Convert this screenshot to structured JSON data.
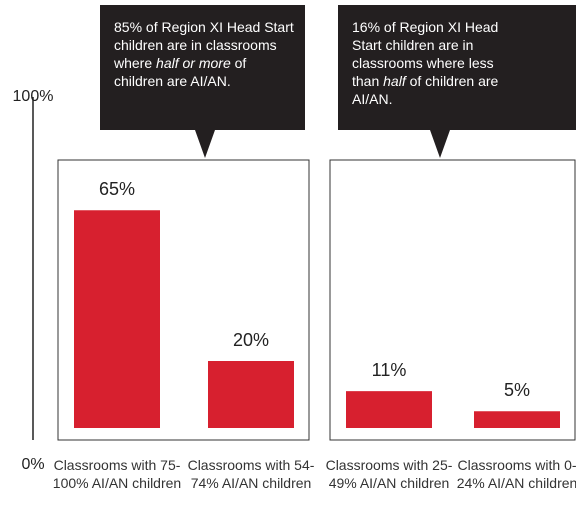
{
  "chart_data": {
    "type": "bar",
    "categories": [
      "Classrooms with 75-100% AI/AN children",
      "Classrooms with 54-74% AI/AN children",
      "Classrooms with 25-49% AI/AN children",
      "Classrooms with 0-24% AI/AN children"
    ],
    "values": [
      65,
      20,
      11,
      5
    ],
    "value_labels": [
      "65%",
      "20%",
      "11%",
      "5%"
    ],
    "color": "#d7202f",
    "ylim": [
      0,
      100
    ],
    "yticks": [
      {
        "value": 0,
        "label": "0%"
      },
      {
        "value": 100,
        "label": "100%"
      }
    ],
    "grid": false,
    "annotations": [
      [
        {
          "text": "85% of Region XI Head Start children are in classrooms where "
        },
        {
          "text": "half or more",
          "italic": true
        },
        {
          "text": " of children are AI/AN."
        }
      ],
      [
        {
          "text": "16% of Region XI Head Start children are in classrooms where less than "
        },
        {
          "text": "half",
          "italic": true
        },
        {
          "text": " of children are AI/AN."
        }
      ]
    ]
  }
}
